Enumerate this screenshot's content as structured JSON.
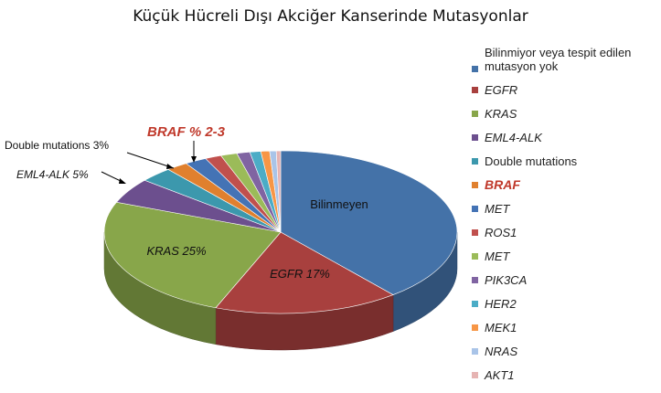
{
  "title": "Küçük Hücreli Dışı Akciğer Kanserinde Mutasyonlar",
  "chart_data": {
    "type": "pie",
    "title": "Küçük Hücreli Dışı Akciğer Kanserinde Mutasyonlar",
    "slices": [
      {
        "name": "Bilinmiyor veya tespit edilen mutasyon yok",
        "value": 39,
        "color": "#4472a8"
      },
      {
        "name": "EGFR",
        "value": 17,
        "color": "#a8403e"
      },
      {
        "name": "KRAS",
        "value": 25,
        "color": "#88a64a"
      },
      {
        "name": "EML4-ALK",
        "value": 5,
        "color": "#6c4f8e"
      },
      {
        "name": "Double mutations",
        "value": 3,
        "color": "#3c98ad"
      },
      {
        "name": "BRAF",
        "value": 2,
        "color": "#e0802e"
      },
      {
        "name": "MET",
        "value": 2,
        "color": "#4473b5"
      },
      {
        "name": "ROS1",
        "value": 1.5,
        "color": "#c0504d"
      },
      {
        "name": "MET",
        "value": 1.5,
        "color": "#9bbb59"
      },
      {
        "name": "PIK3CA",
        "value": 1.2,
        "color": "#8064a2"
      },
      {
        "name": "HER2",
        "value": 1,
        "color": "#4bacc6"
      },
      {
        "name": "MEK1",
        "value": 0.8,
        "color": "#f79646"
      },
      {
        "name": "NRAS",
        "value": 0.6,
        "color": "#a9c4e8"
      },
      {
        "name": "AKT1",
        "value": 0.4,
        "color": "#e6b4b3"
      }
    ],
    "slice_labels": [
      "Bilinmeyen",
      "EGFR 17%",
      "KRAS 25%"
    ],
    "callouts": [
      "Double mutations 3%",
      "BRAF % 2-3",
      "EML4-ALK 5%"
    ],
    "legend_position": "right"
  },
  "legend": [
    {
      "label": "Bilinmiyor veya tespit edilen mutasyon yok",
      "color": "#4472a8"
    },
    {
      "label": "EGFR",
      "color": "#a8403e"
    },
    {
      "label": "KRAS",
      "color": "#88a64a"
    },
    {
      "label": "EML4-ALK",
      "color": "#6c4f8e"
    },
    {
      "label": "Double mutations",
      "color": "#3c98ad"
    },
    {
      "label": "BRAF",
      "color": "#e0802e"
    },
    {
      "label": "MET",
      "color": "#4473b5"
    },
    {
      "label": "ROS1",
      "color": "#c0504d"
    },
    {
      "label": "MET",
      "color": "#9bbb59"
    },
    {
      "label": "PIK3CA",
      "color": "#8064a2"
    },
    {
      "label": "HER2",
      "color": "#4bacc6"
    },
    {
      "label": "MEK1",
      "color": "#f79646"
    },
    {
      "label": "NRAS",
      "color": "#a9c4e8"
    },
    {
      "label": "AKT1",
      "color": "#e6b4b3"
    }
  ]
}
